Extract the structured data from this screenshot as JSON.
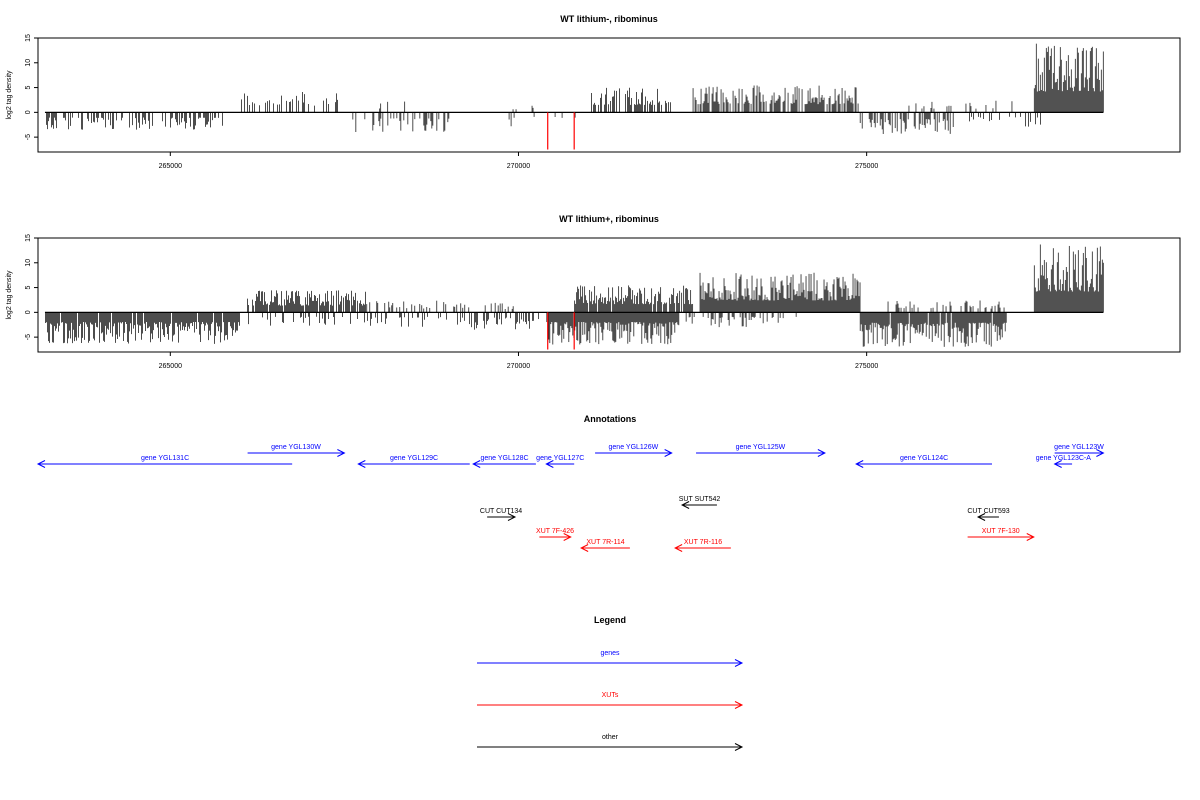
{
  "chart_data": [
    {
      "type": "bar",
      "title": "WT lithium-, ribominus",
      "ylabel": "log2 tag density",
      "xlabel": "",
      "xlim": [
        263100,
        279500
      ],
      "ylim": [
        -8,
        15
      ],
      "xticks": [
        265000,
        270000,
        275000
      ],
      "yticks": [
        -5,
        0,
        5,
        10,
        15
      ],
      "grid": false,
      "series": [
        {
          "strand": "+",
          "segments": [
            {
              "start": 266000,
              "end": 267400,
              "max": 4.5,
              "density": 0.35
            },
            {
              "start": 268000,
              "end": 268500,
              "max": 2.5,
              "density": 0.15
            },
            {
              "start": 269800,
              "end": 270400,
              "max": 1.5,
              "density": 0.1
            },
            {
              "start": 271000,
              "end": 272200,
              "max": 5.0,
              "density": 0.6
            },
            {
              "start": 272500,
              "end": 274900,
              "max": 5.5,
              "density": 0.7
            },
            {
              "start": 275500,
              "end": 277300,
              "max": 2.5,
              "density": 0.15
            },
            {
              "start": 277400,
              "end": 278400,
              "max": 14.0,
              "density": 1.0
            }
          ]
        },
        {
          "strand": "-",
          "segments": [
            {
              "start": 263200,
              "end": 265800,
              "max": -3.5,
              "density": 0.4
            },
            {
              "start": 267600,
              "end": 269000,
              "max": -4.0,
              "density": 0.3
            },
            {
              "start": 269700,
              "end": 270900,
              "max": -3.0,
              "density": 0.15
            },
            {
              "start": 274900,
              "end": 276300,
              "max": -4.5,
              "density": 0.5
            },
            {
              "start": 276400,
              "end": 277500,
              "max": -3.0,
              "density": 0.2
            }
          ]
        },
        {
          "strand": "highlight",
          "color": "#ff0000",
          "bars": [
            [
              270420,
              -7.5
            ],
            [
              270800,
              -7.5
            ]
          ]
        }
      ]
    },
    {
      "type": "bar",
      "title": "WT lithium+, ribominus",
      "ylabel": "log2 tag density",
      "xlabel": "",
      "xlim": [
        263100,
        279500
      ],
      "ylim": [
        -8,
        15
      ],
      "xticks": [
        265000,
        270000,
        275000
      ],
      "yticks": [
        -5,
        0,
        5,
        10,
        15
      ],
      "grid": false,
      "series": [
        {
          "strand": "+",
          "segments": [
            {
              "start": 266100,
              "end": 267800,
              "max": 4.5,
              "density": 0.9
            },
            {
              "start": 267800,
              "end": 269300,
              "max": 2.5,
              "density": 0.3
            },
            {
              "start": 269500,
              "end": 270100,
              "max": 2.0,
              "density": 0.2
            },
            {
              "start": 270800,
              "end": 272500,
              "max": 5.5,
              "density": 0.9
            },
            {
              "start": 272600,
              "end": 274900,
              "max": 8.0,
              "density": 1.0
            },
            {
              "start": 275300,
              "end": 277000,
              "max": 2.5,
              "density": 0.3
            },
            {
              "start": 277400,
              "end": 278400,
              "max": 14.0,
              "density": 1.0
            }
          ]
        },
        {
          "strand": "-",
          "segments": [
            {
              "start": 263200,
              "end": 266000,
              "max": -6.5,
              "density": 0.95
            },
            {
              "start": 266100,
              "end": 269000,
              "max": -3.0,
              "density": 0.2
            },
            {
              "start": 269000,
              "end": 270300,
              "max": -3.5,
              "density": 0.4
            },
            {
              "start": 270400,
              "end": 272300,
              "max": -6.5,
              "density": 1.0
            },
            {
              "start": 272300,
              "end": 274000,
              "max": -3.0,
              "density": 0.3
            },
            {
              "start": 274900,
              "end": 277000,
              "max": -7.0,
              "density": 0.95
            }
          ]
        },
        {
          "strand": "highlight",
          "color": "#ff0000",
          "bars": [
            [
              270420,
              -7.5
            ],
            [
              270800,
              -7.5
            ]
          ]
        }
      ]
    }
  ],
  "annotations": {
    "title": "Annotations",
    "features": [
      {
        "label": "gene YGL131C",
        "start": 263100,
        "end": 266750,
        "dir": "-",
        "color": "#0000ff",
        "row": 2
      },
      {
        "label": "gene YGL130W",
        "start": 266110,
        "end": 267500,
        "dir": "+",
        "color": "#0000ff",
        "row": 1
      },
      {
        "label": "gene YGL129C",
        "start": 267700,
        "end": 269300,
        "dir": "-",
        "color": "#0000ff",
        "row": 2
      },
      {
        "label": "gene YGL128C",
        "start": 269350,
        "end": 270250,
        "dir": "-",
        "color": "#0000ff",
        "row": 2
      },
      {
        "label": "gene YGL127C",
        "start": 270400,
        "end": 270800,
        "dir": "-",
        "color": "#0000ff",
        "row": 2
      },
      {
        "label": "gene YGL126W",
        "start": 271100,
        "end": 272200,
        "dir": "+",
        "color": "#0000ff",
        "row": 1
      },
      {
        "label": "gene YGL125W",
        "start": 272550,
        "end": 274400,
        "dir": "+",
        "color": "#0000ff",
        "row": 1
      },
      {
        "label": "gene YGL124C",
        "start": 274850,
        "end": 276800,
        "dir": "-",
        "color": "#0000ff",
        "row": 2
      },
      {
        "label": "gene YGL123W",
        "start": 277700,
        "end": 278400,
        "dir": "+",
        "color": "#0000ff",
        "row": 1
      },
      {
        "label": "gene YGL123C-A",
        "start": 277700,
        "end": 277950,
        "dir": "-",
        "color": "#0000ff",
        "row": 2
      },
      {
        "label": "SUT SUT542",
        "start": 272350,
        "end": 272850,
        "dir": "-",
        "color": "#000000",
        "row": 3
      },
      {
        "label": "CUT CUT134",
        "start": 269550,
        "end": 269950,
        "dir": "+",
        "color": "#000000",
        "row": 4
      },
      {
        "label": "CUT CUT593",
        "start": 276600,
        "end": 276900,
        "dir": "-",
        "color": "#000000",
        "row": 4
      },
      {
        "label": "XUT 7F-426",
        "start": 270300,
        "end": 270750,
        "dir": "+",
        "color": "#ff0000",
        "row": 5
      },
      {
        "label": "XUT 7R-114",
        "start": 270900,
        "end": 271600,
        "dir": "-",
        "color": "#ff0000",
        "row": 6
      },
      {
        "label": "XUT 7R-116",
        "start": 272250,
        "end": 273050,
        "dir": "-",
        "color": "#ff0000",
        "row": 6
      },
      {
        "label": "XUT 7F-130",
        "start": 276450,
        "end": 277400,
        "dir": "+",
        "color": "#ff0000",
        "row": 5
      }
    ]
  },
  "legend": {
    "title": "Legend",
    "items": [
      {
        "label": "genes",
        "color": "#0000ff"
      },
      {
        "label": "XUTs",
        "color": "#ff0000"
      },
      {
        "label": "other",
        "color": "#000000"
      }
    ]
  }
}
